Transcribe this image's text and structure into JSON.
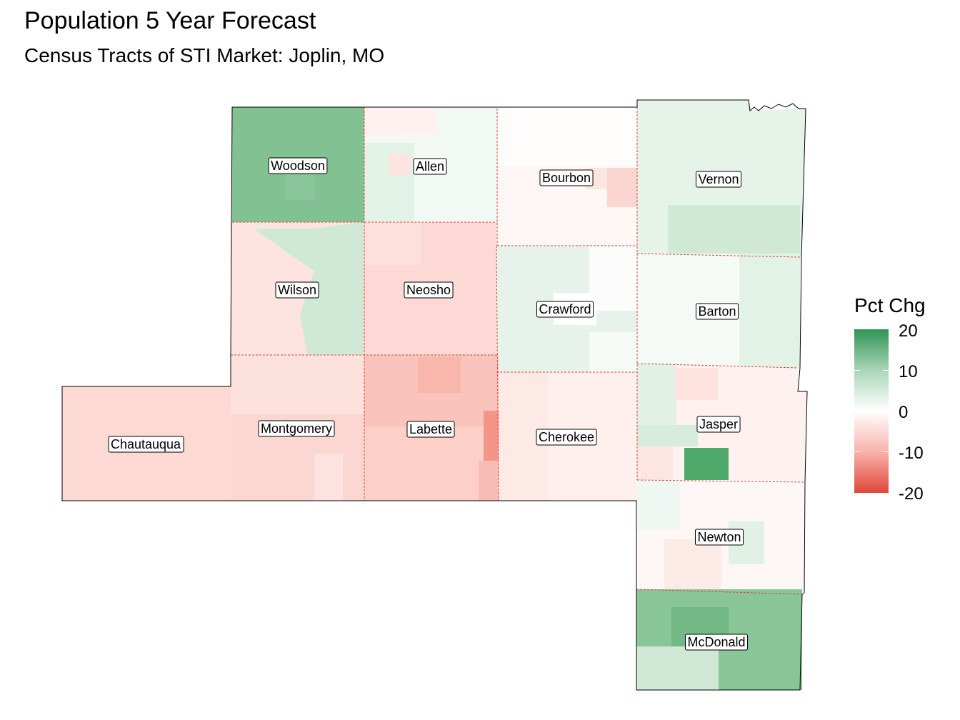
{
  "title": "Population 5 Year Forecast",
  "subtitle": "Census Tracts of STI Market: Joplin, MO",
  "legend": {
    "title": "Pct Chg",
    "ticks": [
      "20",
      "10",
      "0",
      "-10",
      "-20"
    ],
    "range": [
      -20,
      20
    ],
    "colors": {
      "high": "#2e9455",
      "mid": "#ffffff",
      "low": "#e0463a"
    }
  },
  "counties": [
    {
      "name": "Woodson",
      "pct_chg": 12
    },
    {
      "name": "Allen",
      "pct_chg": 1
    },
    {
      "name": "Bourbon",
      "pct_chg": -1
    },
    {
      "name": "Vernon",
      "pct_chg": 4
    },
    {
      "name": "Wilson",
      "pct_chg": -4
    },
    {
      "name": "Neosho",
      "pct_chg": -5
    },
    {
      "name": "Crawford",
      "pct_chg": 3
    },
    {
      "name": "Barton",
      "pct_chg": 2
    },
    {
      "name": "Chautauqua",
      "pct_chg": -6
    },
    {
      "name": "Montgomery",
      "pct_chg": -6
    },
    {
      "name": "Labette",
      "pct_chg": -7
    },
    {
      "name": "Cherokee",
      "pct_chg": -2
    },
    {
      "name": "Jasper",
      "pct_chg": -2
    },
    {
      "name": "Newton",
      "pct_chg": -1
    },
    {
      "name": "McDonald",
      "pct_chg": 10
    }
  ]
}
